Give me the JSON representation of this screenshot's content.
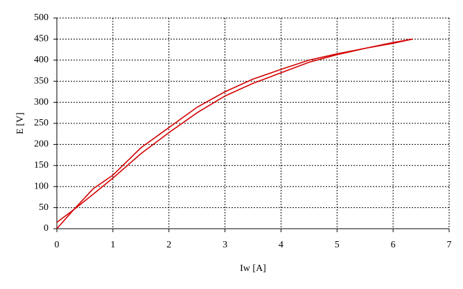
{
  "chart_data": {
    "type": "line",
    "xlabel": "Iw [A]",
    "ylabel": "E [V]",
    "x": [
      0,
      0.3,
      0.65,
      1,
      1.5,
      2,
      2.5,
      3,
      3.5,
      4,
      4.5,
      5,
      5.5,
      6,
      6.35
    ],
    "series": [
      {
        "color": "#d40000",
        "values": [
          0,
          45,
          82,
          120,
          178,
          228,
          275,
          315,
          345,
          370,
          395,
          413,
          428,
          442,
          450
        ]
      },
      {
        "color": "#d40000",
        "values": [
          15,
          45,
          95,
          127,
          192,
          240,
          288,
          325,
          355,
          378,
          400,
          415,
          428,
          440,
          450
        ]
      }
    ],
    "xlim": [
      0,
      7
    ],
    "xticks": [
      0,
      1,
      2,
      3,
      4,
      5,
      6,
      7
    ],
    "ylim": [
      0,
      500
    ],
    "yticks": [
      0,
      50,
      100,
      150,
      200,
      250,
      300,
      350,
      400,
      450,
      500
    ],
    "grid": true
  }
}
